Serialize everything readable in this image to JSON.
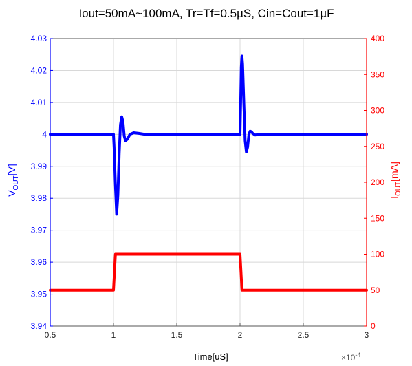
{
  "chart_data": {
    "type": "line",
    "title": "Iout=50mA~100mA, Tr=Tf=0.5µS, Cin=Cout=1µF",
    "xlabel": "Time[uS]",
    "x_exponent_label": "×10",
    "x_exponent_power": "-4",
    "ylabel_left": {
      "main": "V",
      "sub": "OUT",
      "unit": "[V]"
    },
    "ylabel_right": {
      "main": "I",
      "sub": "OUT",
      "unit": "[mA]"
    },
    "xlim": [
      0.5,
      3
    ],
    "ylim_left": [
      3.94,
      4.03
    ],
    "ylim_right": [
      0,
      400
    ],
    "grid": true,
    "x_ticks": [
      "0.5",
      "1",
      "1.5",
      "2",
      "2.5",
      "3"
    ],
    "y_left_ticks": [
      "3.94",
      "3.95",
      "3.96",
      "3.97",
      "3.98",
      "3.99",
      "4",
      "4.01",
      "4.02",
      "4.03"
    ],
    "y_right_ticks": [
      "0",
      "50",
      "100",
      "150",
      "200",
      "250",
      "300",
      "350",
      "400"
    ],
    "colors": {
      "left_axis": "#0000ff",
      "right_axis": "#ff0000",
      "vout": "#0000ff",
      "iout": "#ff0000",
      "grid": "#d8d8d8"
    },
    "series": [
      {
        "axis": "left",
        "x": [
          0.5,
          1.0,
          1.005,
          1.015,
          1.025,
          1.035,
          1.045,
          1.055,
          1.065,
          1.075,
          1.085,
          1.095,
          1.11,
          1.13,
          1.16,
          1.2,
          1.25,
          1.35,
          1.5,
          2.0,
          2.005,
          2.01,
          2.015,
          2.02,
          2.03,
          2.04,
          2.05,
          2.06,
          2.07,
          2.08,
          2.09,
          2.1,
          2.12,
          2.15,
          2.2,
          2.3,
          2.5,
          3.0
        ],
        "y": [
          4.0,
          4.0,
          3.996,
          3.984,
          3.975,
          3.981,
          3.994,
          4.003,
          4.0055,
          4.004,
          3.9995,
          3.998,
          3.9985,
          4.0,
          4.0005,
          4.0003,
          4.0,
          4.0,
          4.0,
          4.0,
          4.01,
          4.021,
          4.0245,
          4.022,
          4.01,
          3.998,
          3.9945,
          3.996,
          4.0,
          4.001,
          4.0008,
          4.0003,
          3.9998,
          4.0,
          4.0,
          4.0,
          4.0,
          4.0
        ]
      },
      {
        "axis": "right",
        "x": [
          0.5,
          1.0,
          1.015,
          2.0,
          2.015,
          3.0
        ],
        "y": [
          50,
          50,
          100,
          100,
          50,
          50
        ]
      }
    ]
  }
}
